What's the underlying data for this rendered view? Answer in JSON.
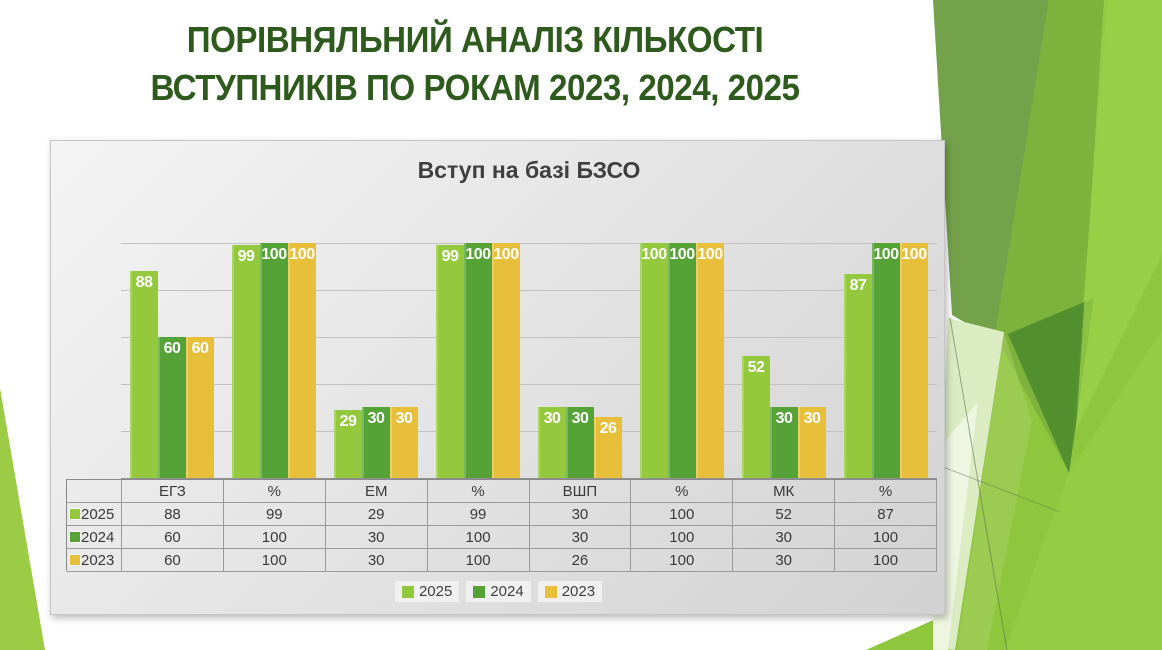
{
  "slide": {
    "title_line1": "ПОРІВНЯЛЬНИЙ АНАЛІЗ КІЛЬКОСТІ",
    "title_line2": "ВСТУПНИКІВ ПО РОКАМ 2023, 2024, 2025"
  },
  "colors": {
    "slide_title": "#2f5a1d",
    "chart_text": "#3f3f3f",
    "series_2025": "#94c83d",
    "series_2024": "#55a236",
    "series_2023": "#e8bf3b",
    "panel_background": "#e3e3e3",
    "gridline": "#c2c2c2",
    "decor_green_bright": "#8ec63e",
    "decor_green_sage": "#73a24b",
    "decor_green_dark": "#4e8c2b",
    "decor_green_pale": "#dcecc2"
  },
  "chart_data": {
    "type": "bar",
    "title": "Вступ на базі БЗСО",
    "categories": [
      "ЕГЗ",
      "%",
      "ЕМ",
      "%",
      "ВШП",
      "%",
      "МК",
      "%"
    ],
    "series": [
      {
        "name": "2025",
        "color": "#94c83d",
        "values": [
          88,
          99,
          29,
          99,
          30,
          100,
          52,
          87
        ]
      },
      {
        "name": "2024",
        "color": "#55a236",
        "values": [
          60,
          100,
          30,
          100,
          30,
          100,
          30,
          100
        ]
      },
      {
        "name": "2023",
        "color": "#e8bf3b",
        "values": [
          60,
          100,
          30,
          100,
          26,
          100,
          30,
          100
        ]
      }
    ],
    "xlabel": "",
    "ylabel": "",
    "ylim": [
      0,
      100
    ],
    "gridline_step": 20,
    "grid": true,
    "y_axis_labels_visible": false,
    "data_labels": "inside-end",
    "data_labels_color": "#ffffff",
    "legend_position": "bottom",
    "data_table_visible": true
  }
}
